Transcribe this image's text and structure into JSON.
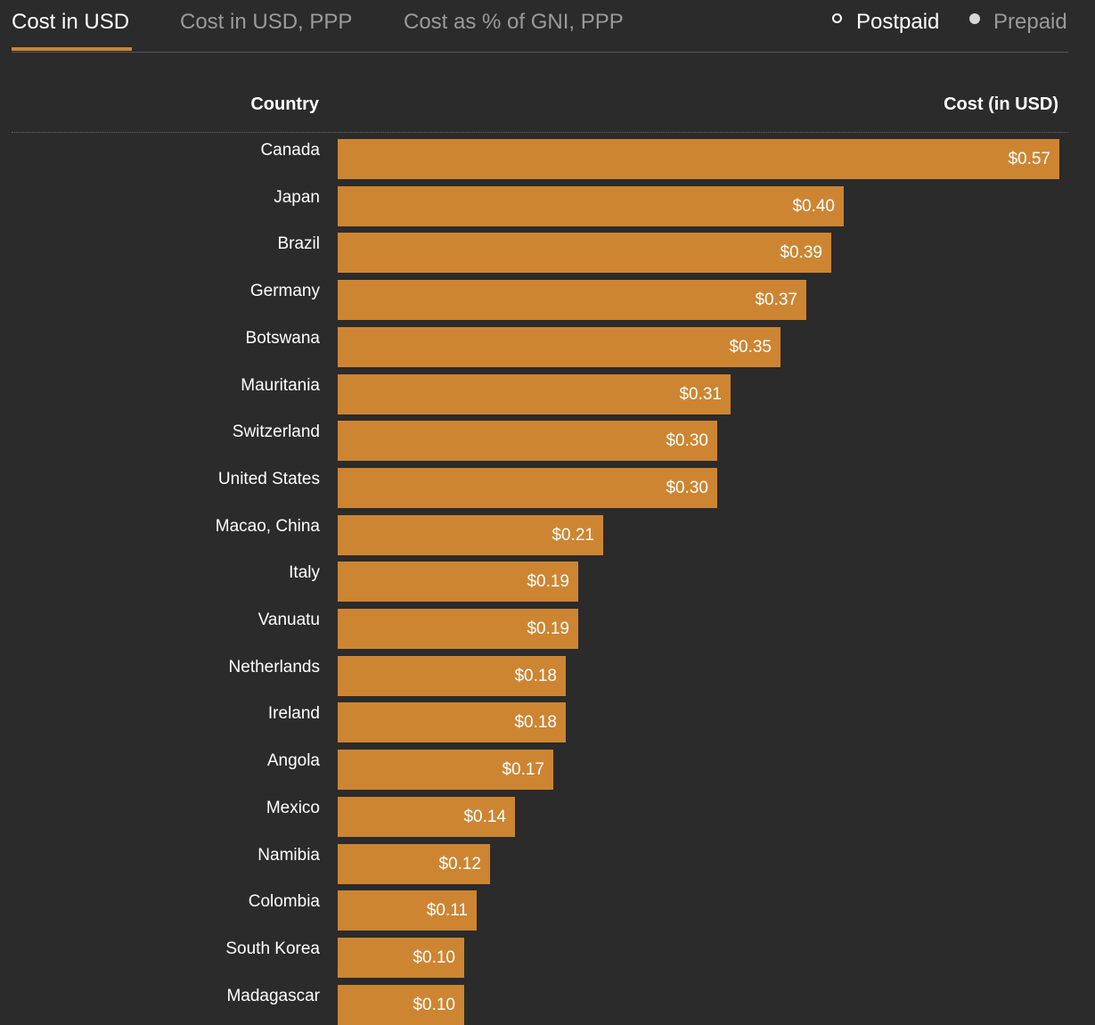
{
  "tabs": [
    {
      "label": "Cost in USD",
      "active": true
    },
    {
      "label": "Cost in USD, PPP",
      "active": false
    },
    {
      "label": "Cost as % of GNI, PPP",
      "active": false
    }
  ],
  "radio": {
    "postpaid": {
      "label": "Postpaid",
      "selected": false
    },
    "prepaid": {
      "label": "Prepaid",
      "selected": true
    }
  },
  "table_header": {
    "country": "Country",
    "cost": "Cost (in USD)"
  },
  "colors": {
    "bar": "#cd8532",
    "background": "#2b2b2b",
    "text": "#ffffff",
    "inactive_text": "#9a9a9a"
  },
  "chart_data": {
    "type": "bar",
    "orientation": "horizontal",
    "categories": [
      "Canada",
      "Japan",
      "Brazil",
      "Germany",
      "Botswana",
      "Mauritania",
      "Switzerland",
      "United States",
      "Macao, China",
      "Italy",
      "Vanuatu",
      "Netherlands",
      "Ireland",
      "Angola",
      "Mexico",
      "Namibia",
      "Colombia",
      "South Korea",
      "Madagascar"
    ],
    "values": [
      0.57,
      0.4,
      0.39,
      0.37,
      0.35,
      0.31,
      0.3,
      0.3,
      0.21,
      0.19,
      0.19,
      0.18,
      0.18,
      0.17,
      0.14,
      0.12,
      0.11,
      0.1,
      0.1
    ],
    "labels": [
      "$0.57",
      "$0.40",
      "$0.39",
      "$0.37",
      "$0.35",
      "$0.31",
      "$0.30",
      "$0.30",
      "$0.21",
      "$0.19",
      "$0.19",
      "$0.18",
      "$0.18",
      "$0.17",
      "$0.14",
      "$0.12",
      "$0.11",
      "$0.10",
      "$0.10"
    ],
    "xlim": [
      0,
      0.57
    ],
    "grid": false
  }
}
